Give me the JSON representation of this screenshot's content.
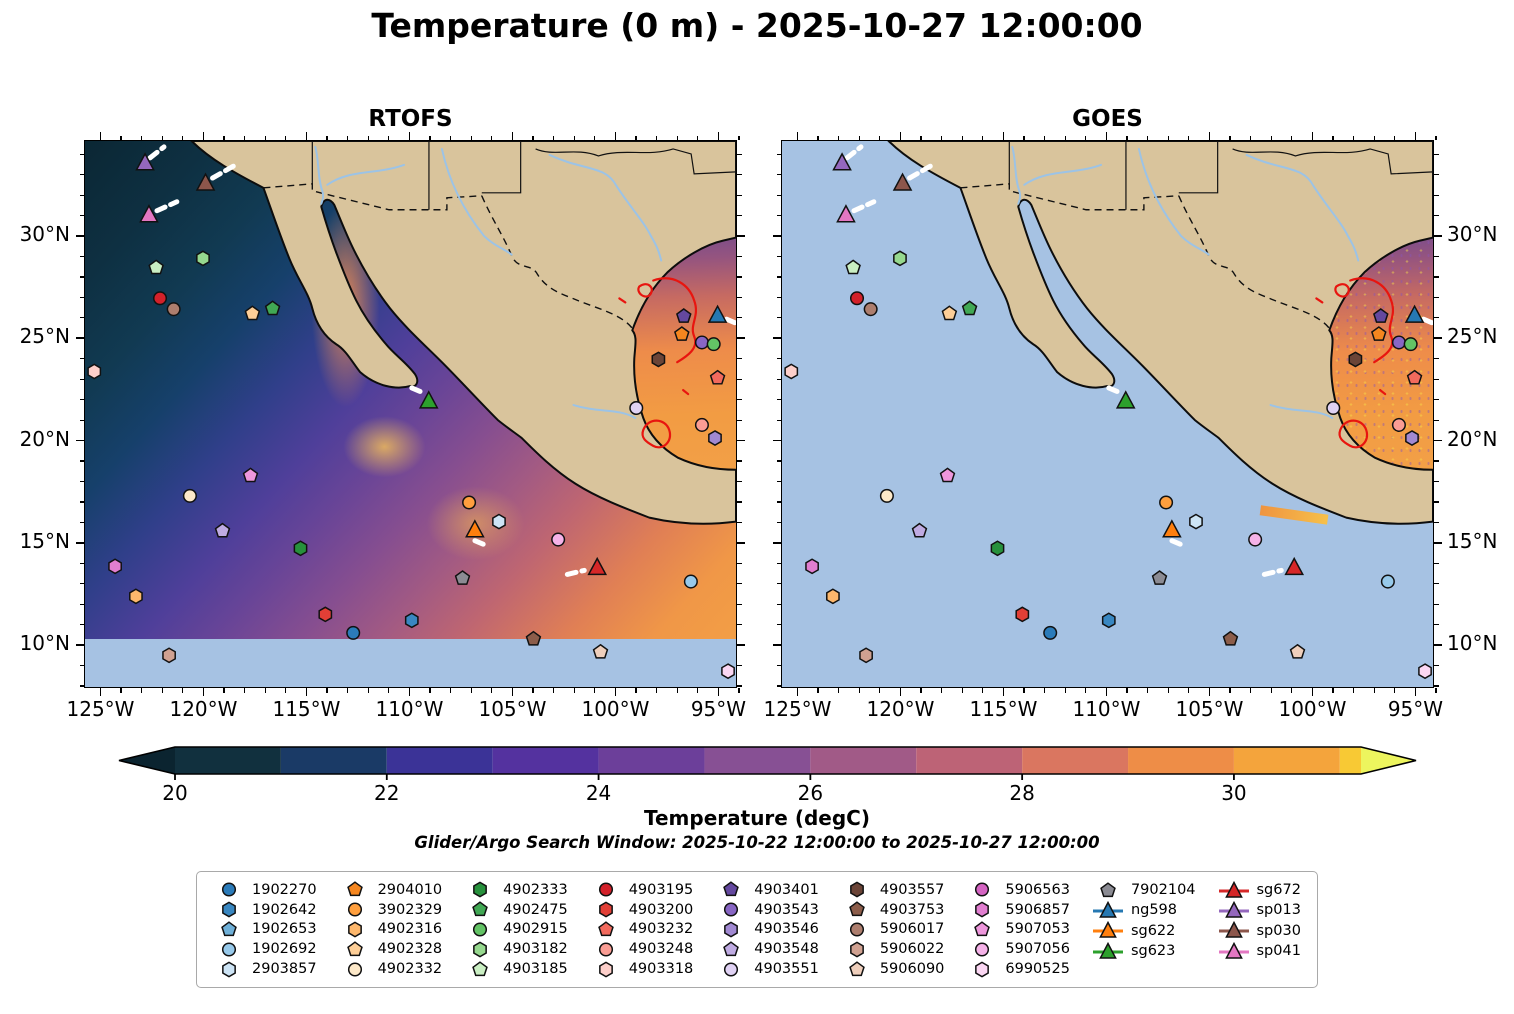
{
  "title": "Temperature (0 m) - 2025-10-27 12:00:00",
  "panels": [
    {
      "title": "RTOFS",
      "variant": "rtofs",
      "lat_labels_side": "left"
    },
    {
      "title": "GOES",
      "variant": "goes",
      "lat_labels_side": "right"
    }
  ],
  "axes": {
    "lon_labels": [
      "125°W",
      "120°W",
      "115°W",
      "110°W",
      "105°W",
      "100°W",
      "95°W"
    ],
    "lon_values": [
      125,
      120,
      115,
      110,
      105,
      100,
      95
    ],
    "lon_range_west": [
      125.8,
      94.1
    ],
    "lat_labels": [
      "30°N",
      "25°N",
      "20°N",
      "15°N",
      "10°N"
    ],
    "lat_values": [
      30,
      25,
      20,
      15,
      10
    ],
    "lat_range": [
      34.7,
      7.9
    ]
  },
  "colorbar": {
    "label": "Temperature (degC)",
    "tick_values": [
      20,
      22,
      24,
      26,
      28,
      30
    ],
    "tick_labels": [
      "20",
      "22",
      "24",
      "26",
      "28",
      "30"
    ],
    "vmin": 20,
    "vmax": 31.2,
    "segment_colors": [
      "#11303e",
      "#1a3a66",
      "#3b3397",
      "#54329f",
      "#6c3f9a",
      "#875094",
      "#a15a87",
      "#bd6376",
      "#da7660",
      "#ee8d47",
      "#f4a43c",
      "#f8c934"
    ],
    "tip_left": "#0b2430",
    "tip_right": "#edf55e"
  },
  "subtitle": "Glider/Argo Search Window: 2025-10-22 12:00:00 to 2025-10-27 12:00:00",
  "map_colors": {
    "land": "#d9c49c",
    "coast": "#0d0d0d",
    "river": "#9cc3e6",
    "contour": "#e8150f",
    "border_dash": "#111111"
  },
  "legend": {
    "columns": [
      [
        {
          "label": "1902270",
          "shape": "circle",
          "color": "#2b7bb9"
        },
        {
          "label": "1902642",
          "shape": "hexagon",
          "color": "#3987c1"
        },
        {
          "label": "1902653",
          "shape": "pentagon",
          "color": "#6fb0d8"
        },
        {
          "label": "1902692",
          "shape": "circle",
          "color": "#97c9ea"
        },
        {
          "label": "2903857",
          "shape": "hexagon",
          "color": "#cde4f5"
        }
      ],
      [
        {
          "label": "2904010",
          "shape": "pentagon",
          "color": "#f5861f"
        },
        {
          "label": "3902329",
          "shape": "circle",
          "color": "#ff9f3e"
        },
        {
          "label": "4902316",
          "shape": "hexagon",
          "color": "#fdb76c"
        },
        {
          "label": "4902328",
          "shape": "pentagon",
          "color": "#fdce97"
        },
        {
          "label": "4902332",
          "shape": "circle",
          "color": "#fde9c9"
        }
      ],
      [
        {
          "label": "4902333",
          "shape": "hexagon",
          "color": "#27913c"
        },
        {
          "label": "4902475",
          "shape": "pentagon",
          "color": "#41a854"
        },
        {
          "label": "4902915",
          "shape": "circle",
          "color": "#63c365"
        },
        {
          "label": "4903182",
          "shape": "hexagon",
          "color": "#96d88e"
        },
        {
          "label": "4903185",
          "shape": "pentagon",
          "color": "#caefc3"
        }
      ],
      [
        {
          "label": "4903195",
          "shape": "circle",
          "color": "#d3212a"
        },
        {
          "label": "4903200",
          "shape": "hexagon",
          "color": "#e23f36"
        },
        {
          "label": "4903232",
          "shape": "pentagon",
          "color": "#f26a5d"
        },
        {
          "label": "4903248",
          "shape": "circle",
          "color": "#fa9d94"
        },
        {
          "label": "4903318",
          "shape": "hexagon",
          "color": "#fdcfca"
        }
      ],
      [
        {
          "label": "4903401",
          "shape": "pentagon",
          "color": "#64489f"
        },
        {
          "label": "4903543",
          "shape": "circle",
          "color": "#8866c4"
        },
        {
          "label": "4903546",
          "shape": "hexagon",
          "color": "#a189d2"
        },
        {
          "label": "4903548",
          "shape": "pentagon",
          "color": "#bfabe2"
        },
        {
          "label": "4903551",
          "shape": "circle",
          "color": "#e0d2f4"
        }
      ],
      [
        {
          "label": "4903557",
          "shape": "hexagon",
          "color": "#6b4437"
        },
        {
          "label": "4903753",
          "shape": "pentagon",
          "color": "#8c5d4a"
        },
        {
          "label": "5906017",
          "shape": "circle",
          "color": "#ad7e6e"
        },
        {
          "label": "5906022",
          "shape": "hexagon",
          "color": "#d0a191"
        },
        {
          "label": "5906090",
          "shape": "pentagon",
          "color": "#efcfbc"
        }
      ],
      [
        {
          "label": "5906563",
          "shape": "circle",
          "color": "#d464c2"
        },
        {
          "label": "5906857",
          "shape": "hexagon",
          "color": "#e17ed0"
        },
        {
          "label": "5907053",
          "shape": "pentagon",
          "color": "#ee97dc"
        },
        {
          "label": "5907056",
          "shape": "circle",
          "color": "#f5b2e8"
        },
        {
          "label": "6990525",
          "shape": "hexagon",
          "color": "#fbd7f3"
        }
      ],
      [
        {
          "label": "7902104",
          "shape": "pentagon",
          "color": "#8b8b93"
        },
        {
          "label": "ng598",
          "shape": "glider",
          "color": "#2678b2"
        },
        {
          "label": "sg622",
          "shape": "glider",
          "color": "#ff7f0e"
        },
        {
          "label": "sg623",
          "shape": "glider",
          "color": "#2ca02c"
        }
      ],
      [
        {
          "label": "sg672",
          "shape": "glider",
          "color": "#d62728"
        },
        {
          "label": "sp013",
          "shape": "glider",
          "color": "#9467bd"
        },
        {
          "label": "sp030",
          "shape": "glider",
          "color": "#8c564b"
        },
        {
          "label": "sp041",
          "shape": "glider",
          "color": "#e377c2"
        }
      ]
    ]
  },
  "markers": [
    {
      "id": "sp013",
      "x": 0.092,
      "y": 0.04,
      "trail": [
        5,
        -5,
        19,
        -16
      ]
    },
    {
      "id": "sp030",
      "x": 0.185,
      "y": 0.077,
      "trail": [
        7,
        -5,
        28,
        -17
      ]
    },
    {
      "id": "sp041",
      "x": 0.098,
      "y": 0.135,
      "trail": [
        8,
        -4,
        28,
        -13
      ]
    },
    {
      "id": "4903182",
      "x": 0.181,
      "y": 0.215
    },
    {
      "id": "4903185",
      "x": 0.109,
      "y": 0.232
    },
    {
      "id": "4903195",
      "x": 0.115,
      "y": 0.288
    },
    {
      "id": "5906017",
      "x": 0.136,
      "y": 0.308
    },
    {
      "id": "4902328",
      "x": 0.257,
      "y": 0.316
    },
    {
      "id": "4902475",
      "x": 0.288,
      "y": 0.307
    },
    {
      "id": "4903318",
      "x": 0.014,
      "y": 0.422
    },
    {
      "id": "5907053",
      "x": 0.254,
      "y": 0.613
    },
    {
      "id": "4902332",
      "x": 0.161,
      "y": 0.65
    },
    {
      "id": "4903548",
      "x": 0.211,
      "y": 0.714
    },
    {
      "id": "4902333",
      "x": 0.331,
      "y": 0.746
    },
    {
      "id": "5906857",
      "x": 0.046,
      "y": 0.779
    },
    {
      "id": "4902316",
      "x": 0.078,
      "y": 0.834
    },
    {
      "id": "4903200",
      "x": 0.369,
      "y": 0.867
    },
    {
      "id": "1902270",
      "x": 0.412,
      "y": 0.901
    },
    {
      "id": "1902642",
      "x": 0.502,
      "y": 0.878
    },
    {
      "id": "5906022",
      "x": 0.129,
      "y": 0.942
    },
    {
      "id": "sg623",
      "x": 0.528,
      "y": 0.476,
      "trail": [
        -17,
        -13,
        -5,
        -8
      ]
    },
    {
      "id": "3902329",
      "x": 0.59,
      "y": 0.662
    },
    {
      "id": "2903857",
      "x": 0.636,
      "y": 0.697
    },
    {
      "id": "sg622",
      "x": 0.599,
      "y": 0.712,
      "trail": [
        0,
        11,
        12,
        16
      ]
    },
    {
      "id": "5907056",
      "x": 0.727,
      "y": 0.73
    },
    {
      "id": "sg672",
      "x": 0.787,
      "y": 0.781,
      "trail": [
        -30,
        7,
        -13,
        3
      ]
    },
    {
      "id": "7902104",
      "x": 0.58,
      "y": 0.801
    },
    {
      "id": "1902692",
      "x": 0.931,
      "y": 0.807
    },
    {
      "id": "4903753",
      "x": 0.689,
      "y": 0.912
    },
    {
      "id": "5906090",
      "x": 0.792,
      "y": 0.936
    },
    {
      "id": "4903401",
      "x": 0.92,
      "y": 0.321
    },
    {
      "id": "ng598",
      "x": 0.972,
      "y": 0.319,
      "trail": [
        9,
        4,
        23,
        10
      ]
    },
    {
      "id": "2904010",
      "x": 0.917,
      "y": 0.354
    },
    {
      "id": "4903543",
      "x": 0.948,
      "y": 0.369
    },
    {
      "id": "4902915",
      "x": 0.966,
      "y": 0.372
    },
    {
      "id": "4903557",
      "x": 0.881,
      "y": 0.4
    },
    {
      "id": "4903232",
      "x": 0.972,
      "y": 0.434
    },
    {
      "id": "4903551",
      "x": 0.847,
      "y": 0.489
    },
    {
      "id": "4903248",
      "x": 0.948,
      "y": 0.52
    },
    {
      "id": "4903546",
      "x": 0.968,
      "y": 0.544
    },
    {
      "id": "6990525",
      "x": 0.988,
      "y": 0.971
    }
  ],
  "chart_data": {
    "type": "heatmap",
    "title": "Temperature (0 m) - 2025-10-27 12:00:00",
    "panels": [
      "RTOFS",
      "GOES"
    ],
    "x_ticks": [
      "125°W",
      "120°W",
      "115°W",
      "110°W",
      "105°W",
      "100°W",
      "95°W"
    ],
    "y_ticks": [
      "30°N",
      "25°N",
      "20°N",
      "15°N",
      "10°N"
    ],
    "colorbar_label": "Temperature (degC)",
    "colorbar_ticks": [
      20,
      22,
      24,
      26,
      28,
      30
    ],
    "legend_note": "Glider/Argo Search Window: 2025-10-22 12:00:00 to 2025-10-27 12:00:00"
  }
}
